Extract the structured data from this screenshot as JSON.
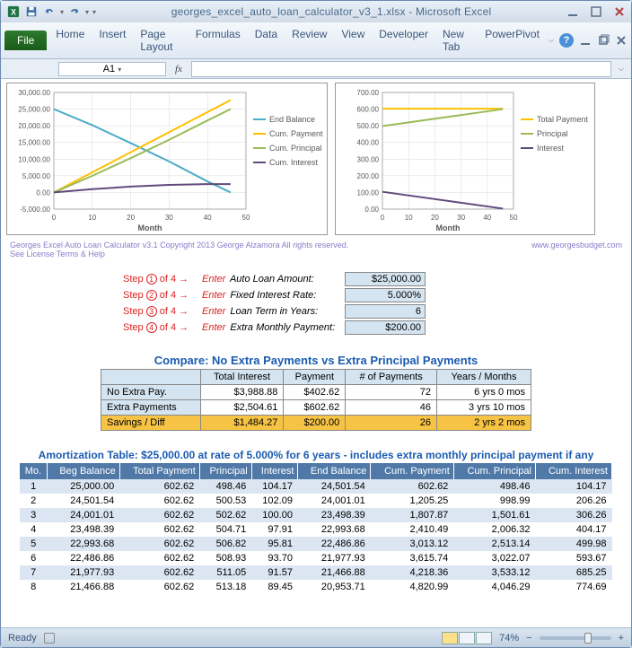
{
  "window": {
    "filename": "georges_excel_auto_loan_calculator_v3_1.xlsx",
    "app": "Microsoft Excel"
  },
  "ribbon": {
    "file": "File",
    "tabs": [
      "Home",
      "Insert",
      "Page Layout",
      "Formulas",
      "Data",
      "Review",
      "View",
      "Developer",
      "New Tab",
      "PowerPivot"
    ]
  },
  "namebox": "A1",
  "formula": "",
  "chart1": {
    "type": "line",
    "xlabel": "Month",
    "xlim": [
      0,
      50
    ],
    "xtick_step": 10,
    "ylim": [
      -5000,
      30000
    ],
    "ytick_step": 5000,
    "y_format": "#,##0.00",
    "background": "#ffffff",
    "grid_color": "#d9d9d9",
    "axis_color": "#808080",
    "axis_font_size": 8,
    "legend": {
      "position": "right",
      "items": [
        {
          "label": "End Balance",
          "color": "#4bacc6"
        },
        {
          "label": "Cum. Payment",
          "color": "#ffc000"
        },
        {
          "label": "Cum. Principal",
          "color": "#9bbb59"
        },
        {
          "label": "Cum. Interest",
          "color": "#604a7b"
        }
      ]
    },
    "series": {
      "end_balance": {
        "color": "#4bacc6",
        "width": 2,
        "x": [
          0,
          10,
          20,
          30,
          40,
          46
        ],
        "y": [
          25000,
          20200,
          14800,
          9300,
          3300,
          0
        ]
      },
      "cum_payment": {
        "color": "#ffc000",
        "width": 2,
        "x": [
          0,
          10,
          20,
          30,
          40,
          46
        ],
        "y": [
          0,
          6026,
          12052,
          18079,
          24105,
          27720
        ]
      },
      "cum_principal": {
        "color": "#9bbb59",
        "width": 2,
        "x": [
          0,
          10,
          20,
          30,
          40,
          46
        ],
        "y": [
          0,
          5000,
          10300,
          15800,
          21600,
          25000
        ]
      },
      "cum_interest": {
        "color": "#604a7b",
        "width": 2,
        "x": [
          0,
          10,
          20,
          30,
          40,
          46
        ],
        "y": [
          0,
          980,
          1760,
          2280,
          2500,
          2520
        ]
      }
    }
  },
  "chart2": {
    "type": "line",
    "xlabel": "Month",
    "xlim": [
      0,
      50
    ],
    "xtick_step": 10,
    "ylim": [
      0,
      700
    ],
    "ytick_step": 100,
    "y_format": "0.00",
    "background": "#ffffff",
    "grid_color": "#d9d9d9",
    "axis_color": "#808080",
    "axis_font_size": 8,
    "legend": {
      "position": "right",
      "items": [
        {
          "label": "Total Payment",
          "color": "#ffc000"
        },
        {
          "label": "Principal",
          "color": "#9bbb59"
        },
        {
          "label": "Interest",
          "color": "#604a7b"
        }
      ]
    },
    "series": {
      "total_payment": {
        "color": "#ffc000",
        "width": 2,
        "x": [
          0,
          46
        ],
        "y": [
          602.62,
          602.62
        ]
      },
      "principal": {
        "color": "#9bbb59",
        "width": 2,
        "x": [
          0,
          46
        ],
        "y": [
          498,
          600
        ]
      },
      "interest": {
        "color": "#604a7b",
        "width": 2,
        "x": [
          0,
          46
        ],
        "y": [
          104,
          3
        ]
      }
    }
  },
  "copyright": {
    "left1": "Georges Excel Auto Loan Calculator v3.1    Copyright 2013  George Alzamora  All rights reserved.",
    "left2": "See License Terms & Help",
    "right": "www.georgesbudget.com"
  },
  "inputs": {
    "steps": [
      {
        "n": "1",
        "label": "Auto Loan Amount:",
        "value": "$25,000.00"
      },
      {
        "n": "2",
        "label": "Fixed Interest Rate:",
        "value": "5.000%"
      },
      {
        "n": "3",
        "label": "Loan Term in Years:",
        "value": "6"
      },
      {
        "n": "4",
        "label": "Extra Monthly Payment:",
        "value": "$200.00"
      }
    ],
    "of": "of 4",
    "step_word": "Step",
    "enter_word": "Enter",
    "arrow": "→"
  },
  "compare": {
    "title": "Compare: No Extra Payments vs Extra Principal Payments",
    "headers": [
      "",
      "Total Interest",
      "Payment",
      "# of Payments",
      "Years / Months"
    ],
    "rows": [
      {
        "label": "No Extra Pay.",
        "cells": [
          "$3,988.88",
          "$402.62",
          "72",
          "6 yrs 0 mos"
        ]
      },
      {
        "label": "Extra Payments",
        "cells": [
          "$2,504.61",
          "$602.62",
          "46",
          "3 yrs 10 mos"
        ]
      },
      {
        "label": "Savings / Diff",
        "cells": [
          "$1,484.27",
          "$200.00",
          "26",
          "2 yrs 2 mos"
        ],
        "highlight": true
      }
    ]
  },
  "amort": {
    "title": "Amortization Table:  $25,000.00 at rate of 5.000% for 6 years - includes extra monthly principal payment if any",
    "headers": [
      "Mo.",
      "Beg Balance",
      "Total Payment",
      "Principal",
      "Interest",
      "End Balance",
      "Cum. Payment",
      "Cum. Principal",
      "Cum. Interest"
    ],
    "rows": [
      [
        "1",
        "25,000.00",
        "602.62",
        "498.46",
        "104.17",
        "24,501.54",
        "602.62",
        "498.46",
        "104.17"
      ],
      [
        "2",
        "24,501.54",
        "602.62",
        "500.53",
        "102.09",
        "24,001.01",
        "1,205.25",
        "998.99",
        "206.26"
      ],
      [
        "3",
        "24,001.01",
        "602.62",
        "502.62",
        "100.00",
        "23,498.39",
        "1,807.87",
        "1,501.61",
        "306.26"
      ],
      [
        "4",
        "23,498.39",
        "602.62",
        "504.71",
        "97.91",
        "22,993.68",
        "2,410.49",
        "2,006.32",
        "404.17"
      ],
      [
        "5",
        "22,993.68",
        "602.62",
        "506.82",
        "95.81",
        "22,486.86",
        "3,013.12",
        "2,513.14",
        "499.98"
      ],
      [
        "6",
        "22,486.86",
        "602.62",
        "508.93",
        "93.70",
        "21,977.93",
        "3,615.74",
        "3,022.07",
        "593.67"
      ],
      [
        "7",
        "21,977.93",
        "602.62",
        "511.05",
        "91.57",
        "21,466.88",
        "4,218.36",
        "3,533.12",
        "685.25"
      ],
      [
        "8",
        "21,466.88",
        "602.62",
        "513.18",
        "89.45",
        "20,953.71",
        "4,820.99",
        "4,046.29",
        "774.69"
      ]
    ]
  },
  "statusbar": {
    "ready": "Ready",
    "zoom": "74%"
  }
}
